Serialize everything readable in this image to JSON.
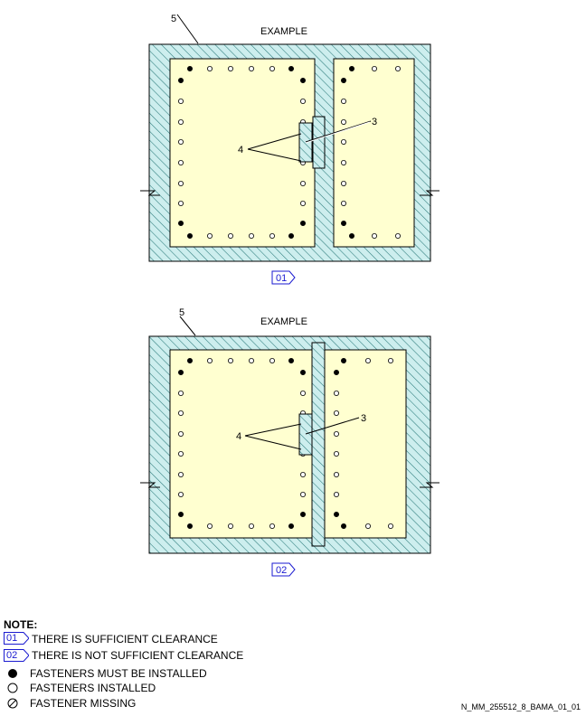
{
  "diagram_01": {
    "callout_5": "5",
    "title": "EXAMPLE",
    "callout_4": "4",
    "callout_3": "3",
    "badge": "01"
  },
  "diagram_02": {
    "callout_5": "5",
    "title": "EXAMPLE",
    "callout_4": "4",
    "callout_3": "3",
    "badge": "02"
  },
  "note": {
    "title": "NOTE:",
    "items": [
      {
        "badge": "01",
        "text": "THERE IS SUFFICIENT CLEARANCE"
      },
      {
        "badge": "02",
        "text": "THERE IS NOT SUFFICIENT CLEARANCE"
      },
      {
        "symbol": "filled-circle-icon",
        "text": "FASTENERS MUST BE INSTALLED"
      },
      {
        "symbol": "open-circle-icon",
        "text": "FASTENERS INSTALLED"
      },
      {
        "symbol": "slashed-circle-icon",
        "text": "FASTENER MISSING"
      }
    ]
  },
  "figure_id": "N_MM_255512_8_BAMA_01_01",
  "colors": {
    "frame_fill": "#cdeeee",
    "panel_fill": "#ffffd0",
    "hatch": "#2a7a7a",
    "badge_outline": "#1a1ad0"
  }
}
